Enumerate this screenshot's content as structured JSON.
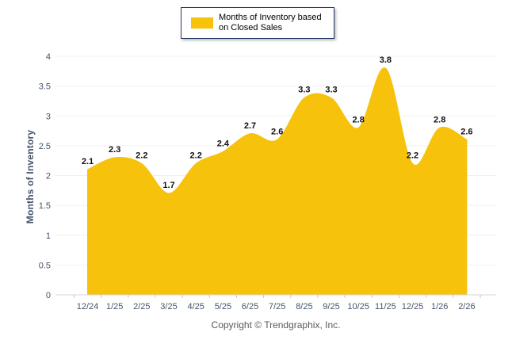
{
  "legend": {
    "label": "Months of Inventory based on Closed Sales"
  },
  "chart_data": {
    "type": "area",
    "title": "Months of Inventory based on Closed Sales",
    "categories": [
      "12/24",
      "1/25",
      "2/25",
      "3/25",
      "4/25",
      "5/25",
      "6/25",
      "7/25",
      "8/25",
      "9/25",
      "10/25",
      "11/25",
      "12/25",
      "1/26",
      "2/26"
    ],
    "values": [
      2.1,
      2.3,
      2.2,
      1.7,
      2.2,
      2.4,
      2.7,
      2.6,
      3.3,
      3.3,
      2.8,
      3.8,
      2.2,
      2.8,
      2.6
    ],
    "xlabel": "",
    "ylabel": "Months of Inventory",
    "ylim": [
      0,
      4
    ],
    "ytick_step": 0.5,
    "grid": "horizontal",
    "legend_position": "top-center",
    "data_labels": true,
    "smooth": true
  },
  "footer": {
    "copyright": "Copyright © Trendgraphix, Inc."
  },
  "colors": {
    "accent": "#F6C20B",
    "legend_border": "#1F3864",
    "grid": "#F0F0F0",
    "axis_line": "#D6D6D6",
    "tick": "#C4C4C4",
    "tick_label": "#44546A",
    "data_label": "#111111",
    "copyright": "#595959"
  }
}
